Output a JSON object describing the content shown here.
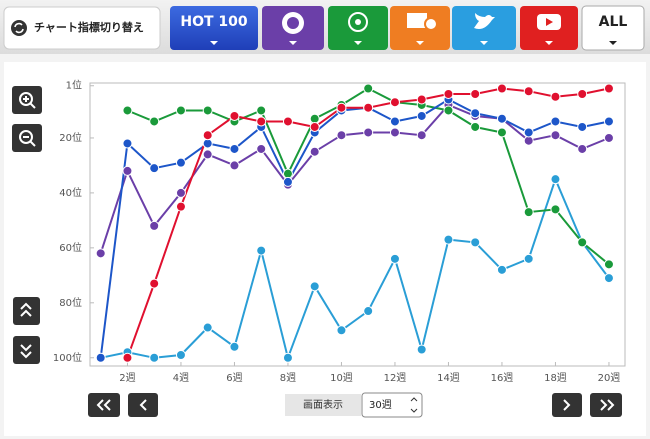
{
  "ui": {
    "switch_label": "チャート指標切り替え",
    "hot100": "HOT 100",
    "all": "ALL",
    "display_label": "画面表示",
    "weeks_option": "30週"
  },
  "chart_data": {
    "type": "line",
    "x": [
      1,
      2,
      3,
      4,
      5,
      6,
      7,
      8,
      9,
      10,
      11,
      12,
      13,
      14,
      15,
      16,
      17,
      18,
      19,
      20
    ],
    "xlim": [
      0.6,
      20.6
    ],
    "xticks": [
      {
        "value": 2,
        "label": "2週"
      },
      {
        "value": 4,
        "label": "4週"
      },
      {
        "value": 6,
        "label": "6週"
      },
      {
        "value": 8,
        "label": "8週"
      },
      {
        "value": 10,
        "label": "10週"
      },
      {
        "value": 12,
        "label": "12週"
      },
      {
        "value": 14,
        "label": "14週"
      },
      {
        "value": 16,
        "label": "16週"
      },
      {
        "value": 18,
        "label": "18週"
      },
      {
        "value": 20,
        "label": "20週"
      }
    ],
    "ylim": [
      103,
      0
    ],
    "yticks": [
      {
        "value": 1,
        "label": "1位"
      },
      {
        "value": 20,
        "label": "20位"
      },
      {
        "value": 40,
        "label": "40位"
      },
      {
        "value": 60,
        "label": "60位"
      },
      {
        "value": 80,
        "label": "80位"
      },
      {
        "value": 100,
        "label": "100位"
      }
    ],
    "grid": false,
    "series": [
      {
        "color": "#2a9ed6",
        "values": [
          100,
          98,
          100,
          99,
          89,
          96,
          61,
          100,
          74,
          90,
          83,
          64,
          97,
          57,
          58,
          68,
          64,
          35,
          58,
          71
        ]
      },
      {
        "color": "#6b3fa8",
        "values": [
          62,
          32,
          52,
          40,
          26,
          30,
          24,
          37,
          25,
          19,
          18,
          18,
          19,
          8,
          12,
          13,
          21,
          19,
          24,
          20
        ]
      },
      {
        "color": "#1a9a3a",
        "values": [
          null,
          10,
          14,
          10,
          10,
          14,
          10,
          33,
          13,
          8,
          2,
          7,
          8,
          10,
          16,
          18,
          47,
          46,
          58,
          66
        ]
      },
      {
        "color": "#1d56c9",
        "values": [
          100,
          22,
          31,
          29,
          22,
          24,
          16,
          36,
          18,
          10,
          9,
          14,
          12,
          6,
          11,
          13,
          18,
          14,
          16,
          14
        ]
      },
      {
        "color": "#e0102f",
        "values": [
          null,
          100,
          73,
          45,
          19,
          12,
          14,
          14,
          16,
          9,
          9,
          7,
          6,
          4,
          4,
          2,
          3,
          5,
          4,
          2
        ]
      }
    ]
  }
}
